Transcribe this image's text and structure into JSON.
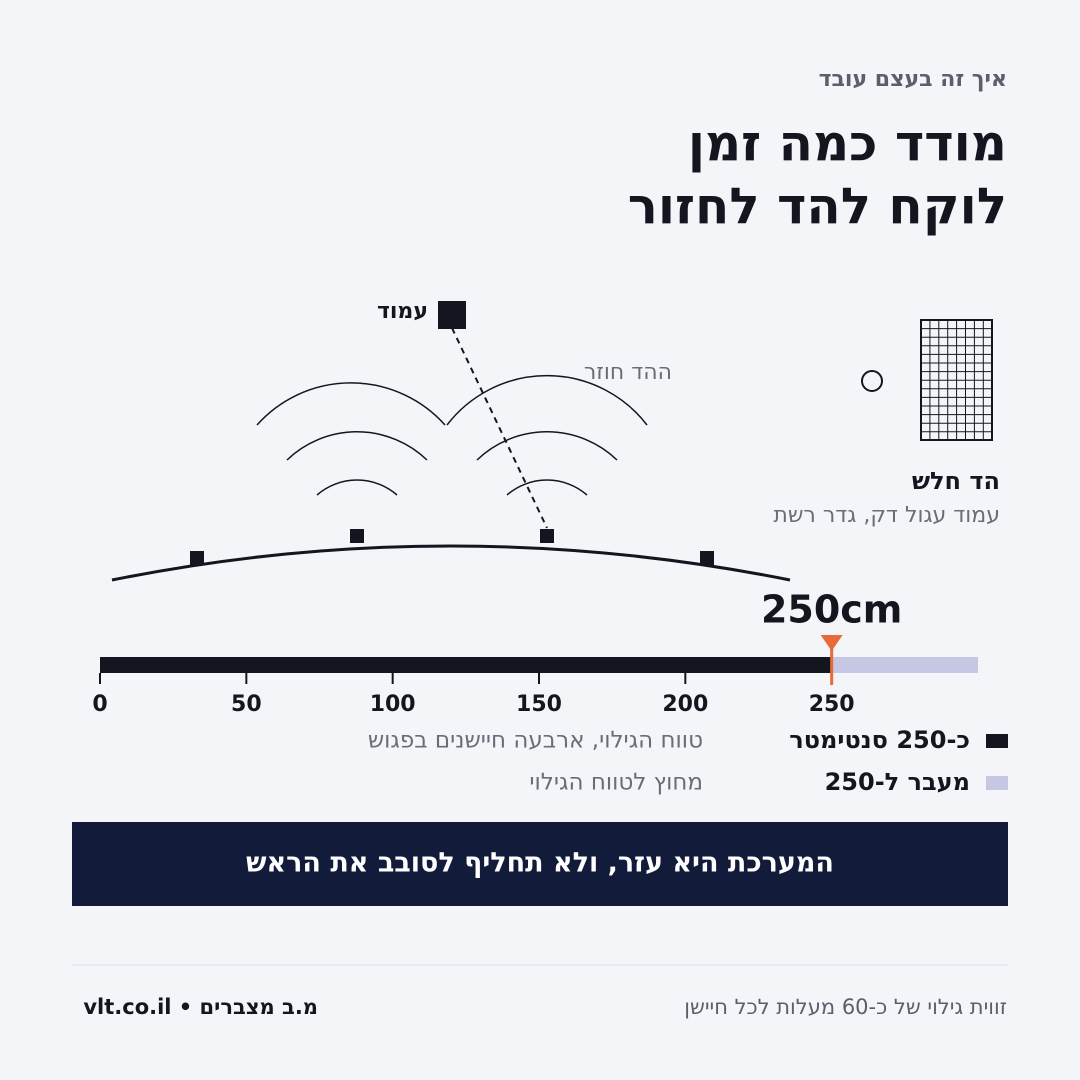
{
  "header": {
    "kicker": "איך זה בעצם עובד",
    "title_lines": [
      "מודד כמה זמן",
      "לוקח להד לחזור"
    ]
  },
  "diagram": {
    "post_label": "עמוד",
    "echo_label": "ההד חוזר",
    "weak_title": "הד חלש",
    "weak_subtitle": "עמוד עגול דק, גדר רשת"
  },
  "scale": {
    "xlim": [
      0,
      300
    ],
    "xticks": [
      0,
      50,
      100,
      150,
      200,
      250
    ],
    "detection": {
      "value": 250,
      "label": "250cm"
    },
    "colors": {
      "inside": "#14161f",
      "outside": "#c5c7e3",
      "marker": "#e8693a"
    }
  },
  "legend": [
    {
      "label": "כ-250 סנטימטר",
      "description": "טווח הגילוי, ארבעה חיישנים בפגוש"
    },
    {
      "label": "מעבר ל-250",
      "description": "מחוץ לטווח הגילוי"
    }
  ],
  "banner": "המערכת היא עזר, ולא תחליף לסובב את הראש",
  "footer": {
    "note": "זווית גילוי של כ-60 מעלות לכל חיישן",
    "brand": "מ.ב מצברים • vlt.co.il"
  }
}
